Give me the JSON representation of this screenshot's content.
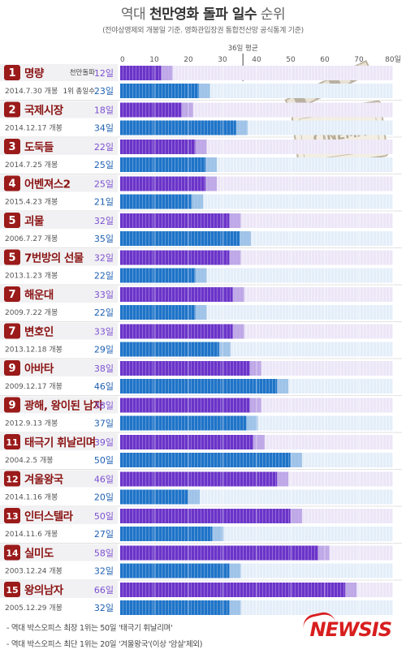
{
  "header": {
    "title_plain": "역대",
    "title_bold": "천만영화 돌파 일수",
    "title_tail": "순위",
    "subtitle": "(전야상영제외 개봉일 기준. 영화관입장권 통합전산망 공식통계 기준)"
  },
  "chart_data": {
    "type": "bar",
    "xlim": [
      0,
      80
    ],
    "x_ticks": [
      "0",
      "10",
      "20",
      "30",
      "40",
      "50",
      "60",
      "70",
      "80일"
    ],
    "average": {
      "label": "36일 평균",
      "value": 36
    },
    "legend": {
      "breakthrough": "천만돌파",
      "first": "1위 총일수"
    },
    "series": [
      {
        "key": "breakthrough",
        "color": "#6b34c9"
      },
      {
        "key": "first",
        "color": "#1f74c8"
      }
    ],
    "movies": [
      {
        "rank": "1",
        "title": "명량",
        "date": "2014.7.30 개봉",
        "breakthrough": 12,
        "breakthrough_label": "12일",
        "first": 23,
        "first_label": "23일"
      },
      {
        "rank": "2",
        "title": "국제시장",
        "date": "2014.12.17 개봉",
        "breakthrough": 18,
        "breakthrough_label": "18일",
        "first": 34,
        "first_label": "34일"
      },
      {
        "rank": "3",
        "title": "도둑들",
        "date": "2014.7.25 개봉",
        "breakthrough": 22,
        "breakthrough_label": "22일",
        "first": 25,
        "first_label": "25일"
      },
      {
        "rank": "4",
        "title": "어벤져스2",
        "date": "2015.4.23 개봉",
        "breakthrough": 25,
        "breakthrough_label": "25일",
        "first": 21,
        "first_label": "21일"
      },
      {
        "rank": "5",
        "title": "괴물",
        "date": "2006.7.27 개봉",
        "breakthrough": 32,
        "breakthrough_label": "32일",
        "first": 35,
        "first_label": "35일"
      },
      {
        "rank": "5",
        "title": "7번방의 선물",
        "date": "2013.1.23 개봉",
        "breakthrough": 32,
        "breakthrough_label": "32일",
        "first": 22,
        "first_label": "22일"
      },
      {
        "rank": "7",
        "title": "해운대",
        "date": "2009.7.22 개봉",
        "breakthrough": 33,
        "breakthrough_label": "33일",
        "first": 22,
        "first_label": "22일"
      },
      {
        "rank": "7",
        "title": "변호인",
        "date": "2013.12.18 개봉",
        "breakthrough": 33,
        "breakthrough_label": "33일",
        "first": 29,
        "first_label": "29일"
      },
      {
        "rank": "9",
        "title": "아바타",
        "date": "2009.12.17 개봉",
        "breakthrough": 38,
        "breakthrough_label": "38일",
        "first": 46,
        "first_label": "46일"
      },
      {
        "rank": "9",
        "title": "광해, 왕이된 남자",
        "date": "2012.9.13 개봉",
        "breakthrough": 38,
        "breakthrough_label": "38일",
        "first": 37,
        "first_label": "37일"
      },
      {
        "rank": "11",
        "title": "태극기 휘날리며",
        "date": "2004.2.5 개봉",
        "breakthrough": 39,
        "breakthrough_label": "39일",
        "first": 50,
        "first_label": "50일"
      },
      {
        "rank": "12",
        "title": "겨울왕국",
        "date": "2014.1.16 개봉",
        "breakthrough": 46,
        "breakthrough_label": "46일",
        "first": 20,
        "first_label": "20일"
      },
      {
        "rank": "13",
        "title": "인터스텔라",
        "date": "2014.11.6 개봉",
        "breakthrough": 50,
        "breakthrough_label": "50일",
        "first": 27,
        "first_label": "27일"
      },
      {
        "rank": "14",
        "title": "실미도",
        "date": "2003.12.24 개봉",
        "breakthrough": 58,
        "breakthrough_label": "58일",
        "first": 32,
        "first_label": "32일"
      },
      {
        "rank": "15",
        "title": "왕의남자",
        "date": "2005.12.29 개봉",
        "breakthrough": 66,
        "breakthrough_label": "66일",
        "first": 32,
        "first_label": "32일"
      }
    ]
  },
  "decoration": {
    "clapper_text": "CINEMA"
  },
  "footnotes": [
    "- 역대 박스오피스 최장 1위는 50일 '태극기 휘날리며'",
    "- 역대 박스오피스 최단 1위는 20일 '겨울왕국'(이상 '암살'제외)"
  ],
  "logo": "NEWSIS"
}
